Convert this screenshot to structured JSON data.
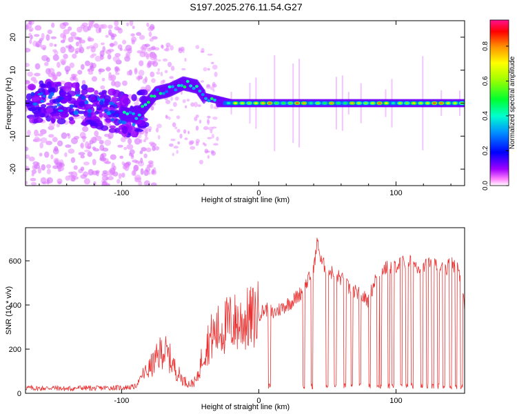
{
  "title": "S197.2025.276.11.54.G27",
  "chart_data": [
    {
      "type": "heatmap",
      "name": "spectrogram",
      "xlabel": "Height of straight line (km)",
      "ylabel": "Frequency (Hz)",
      "xlim": [
        -170,
        150
      ],
      "ylim": [
        -25,
        25
      ],
      "xticks": [
        -100,
        0,
        100
      ],
      "yticks": [
        -20,
        -10,
        0,
        10,
        20
      ],
      "colorbar": {
        "label": "Normalized spectral amplitude",
        "range": [
          0.0,
          0.95
        ],
        "ticks": [
          "0.0",
          "0.2",
          "0.4",
          "0.6",
          "0.8"
        ],
        "colormap": [
          "#ffffff",
          "#ff00ff",
          "#7000ff",
          "#0000ff",
          "#00c0ff",
          "#00ff80",
          "#00ff00",
          "#c0ff00",
          "#ffff00",
          "#ff8000",
          "#ff0000",
          "#ff1080"
        ]
      },
      "ridge": [
        {
          "x": -160,
          "f": 0.5
        },
        {
          "x": -140,
          "f": 0
        },
        {
          "x": -120,
          "f": -1
        },
        {
          "x": -100,
          "f": -3
        },
        {
          "x": -90,
          "f": -4
        },
        {
          "x": -85,
          "f": -2
        },
        {
          "x": -75,
          "f": 3
        },
        {
          "x": -65,
          "f": 4
        },
        {
          "x": -55,
          "f": 6
        },
        {
          "x": -45,
          "f": 5
        },
        {
          "x": -40,
          "f": 2
        },
        {
          "x": -30,
          "f": 1
        },
        {
          "x": -20,
          "f": 0
        },
        {
          "x": -10,
          "f": -0.3
        },
        {
          "x": 0,
          "f": -0.2
        },
        {
          "x": 50,
          "f": 0
        },
        {
          "x": 150,
          "f": 0
        }
      ]
    },
    {
      "type": "line",
      "name": "snr",
      "xlabel": "Height of straight line (km)",
      "ylabel": "SNR (10 * v/v)",
      "xlim": [
        -170,
        150
      ],
      "ylim": [
        0,
        750
      ],
      "xticks": [
        -100,
        0,
        100
      ],
      "yticks": [
        0,
        200,
        400,
        600
      ],
      "color": "#e83030",
      "series": [
        {
          "name": "SNR",
          "x": [
            -170,
            -160,
            -150,
            -140,
            -130,
            -120,
            -110,
            -100,
            -90,
            -85,
            -80,
            -75,
            -70,
            -65,
            -60,
            -55,
            -50,
            -45,
            -40,
            -35,
            -30,
            -25,
            -20,
            -15,
            -10,
            -5,
            0,
            5,
            8,
            10,
            15,
            20,
            25,
            30,
            35,
            40,
            43,
            45,
            50,
            55,
            60,
            65,
            70,
            75,
            80,
            85,
            90,
            95,
            100,
            105,
            110,
            115,
            120,
            125,
            130,
            135,
            140,
            145,
            150
          ],
          "y": [
            25,
            22,
            25,
            20,
            25,
            22,
            25,
            25,
            30,
            80,
            110,
            150,
            200,
            160,
            100,
            60,
            40,
            60,
            200,
            250,
            280,
            300,
            320,
            320,
            330,
            340,
            360,
            380,
            380,
            360,
            380,
            400,
            420,
            450,
            500,
            560,
            700,
            600,
            560,
            540,
            520,
            480,
            460,
            440,
            420,
            520,
            560,
            570,
            580,
            590,
            600,
            580,
            570,
            600,
            580,
            560,
            590,
            570,
            400
          ]
        }
      ],
      "dropouts_x": [
        7,
        32,
        38,
        49,
        55,
        62,
        67,
        73,
        80,
        86,
        88,
        94,
        97,
        103,
        107,
        111,
        118,
        122,
        126,
        130,
        134,
        139,
        143,
        147,
        150
      ]
    }
  ]
}
